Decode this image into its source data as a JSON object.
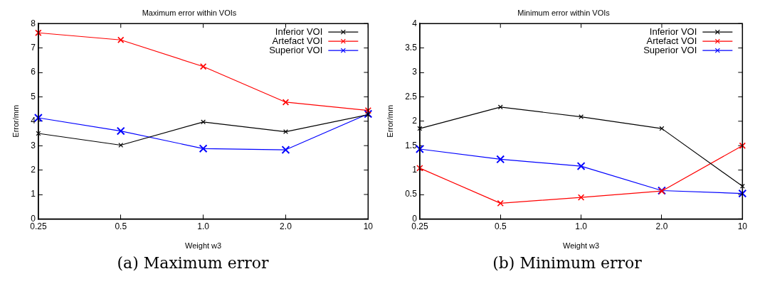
{
  "chart_data": [
    {
      "type": "line",
      "title": "Maximum error within VOIs",
      "xlabel": "Weight w3",
      "ylabel": "Error/mm",
      "categories": [
        "0.25",
        "0.5",
        "1.0",
        "2.0",
        "10"
      ],
      "series": [
        {
          "name": "Inferior VOI",
          "color": "#000000",
          "values": [
            3.5,
            3.02,
            3.97,
            3.57,
            4.27
          ]
        },
        {
          "name": "Artefact VOI",
          "color": "#ff0000",
          "values": [
            7.62,
            7.33,
            6.24,
            4.78,
            4.44
          ]
        },
        {
          "name": "Superior VOI",
          "color": "#0000ff",
          "values": [
            4.14,
            3.6,
            2.88,
            2.83,
            4.3
          ]
        }
      ],
      "ylim": [
        0,
        8
      ],
      "yticks": [
        0,
        1,
        2,
        3,
        4,
        5,
        6,
        7,
        8
      ],
      "grid": false,
      "legend": "top right",
      "marker": "cross",
      "line_style": "solid",
      "annotations": [
        "(a) Maximum error"
      ]
    },
    {
      "type": "line",
      "title": "Minimum error within VOIs",
      "xlabel": "Weight w3",
      "ylabel": "Error/mm",
      "categories": [
        "0.25",
        "0.5",
        "1.0",
        "2.0",
        "10"
      ],
      "series": [
        {
          "name": "Inferior VOI",
          "color": "#000000",
          "values": [
            1.85,
            2.29,
            2.09,
            1.85,
            0.67
          ]
        },
        {
          "name": "Artefact VOI",
          "color": "#ff0000",
          "values": [
            1.04,
            0.32,
            0.44,
            0.57,
            1.5
          ]
        },
        {
          "name": "Superior VOI",
          "color": "#0000ff",
          "values": [
            1.43,
            1.22,
            1.08,
            0.58,
            0.52
          ]
        }
      ],
      "ylim": [
        0,
        4
      ],
      "yticks": [
        0,
        0.5,
        1,
        1.5,
        2,
        2.5,
        3,
        3.5,
        4
      ],
      "grid": false,
      "legend": "top right",
      "marker": "cross",
      "line_style": "solid",
      "annotations": [
        "(b) Minimum error"
      ]
    }
  ]
}
